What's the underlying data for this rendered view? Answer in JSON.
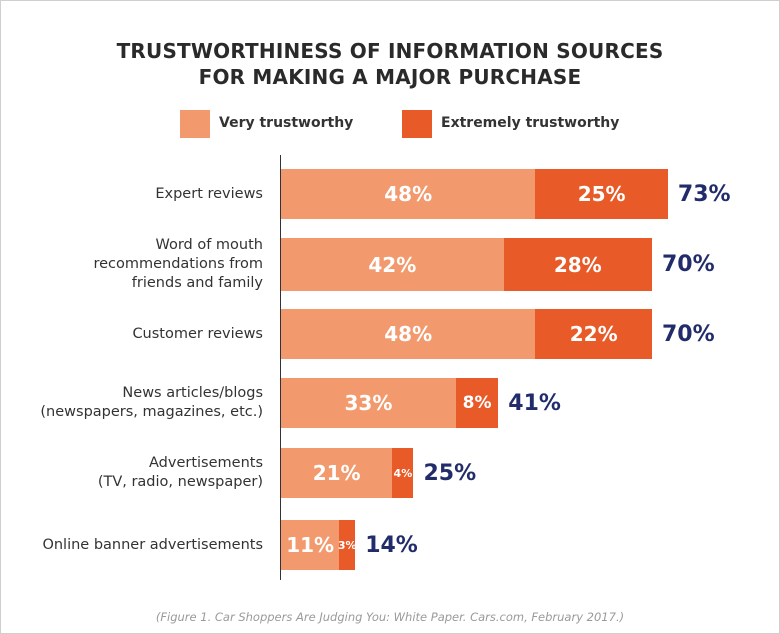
{
  "chart_data": {
    "type": "bar",
    "orientation": "horizontal",
    "stacked": true,
    "title": [
      "TRUSTWORTHINESS OF INFORMATION SOURCES",
      "FOR MAKING A MAJOR PURCHASE"
    ],
    "categories": [
      [
        "Expert reviews"
      ],
      [
        "Word of mouth",
        "recommendations from",
        "friends and family"
      ],
      [
        "Customer reviews"
      ],
      [
        "News articles/blogs",
        "(newspapers, magazines, etc.)"
      ],
      [
        "Advertisements",
        "(TV, radio, newspaper)"
      ],
      [
        "Online banner advertisements"
      ]
    ],
    "series": [
      {
        "name": "Very trustworthy",
        "color": "#f29a6e",
        "values": [
          48,
          42,
          48,
          33,
          21,
          11
        ],
        "labels": [
          "48%",
          "42%",
          "48%",
          "33%",
          "21%",
          "11%"
        ]
      },
      {
        "name": "Extremely trustworthy",
        "color": "#e85a28",
        "values": [
          25,
          28,
          22,
          8,
          4,
          3
        ],
        "labels": [
          "25%",
          "28%",
          "22%",
          "8%",
          "4%",
          "3%"
        ]
      }
    ],
    "totals": [
      73,
      70,
      70,
      41,
      25,
      14
    ],
    "total_labels": [
      "73%",
      "70%",
      "70%",
      "41%",
      "25%",
      "14%"
    ],
    "total_color": "#232c6b",
    "legend_position": "top",
    "grid": false,
    "xlim": [
      0,
      73
    ]
  },
  "caption": "(Figure 1. Car Shoppers Are Judging You: White Paper. Cars.com, February 2017.)"
}
